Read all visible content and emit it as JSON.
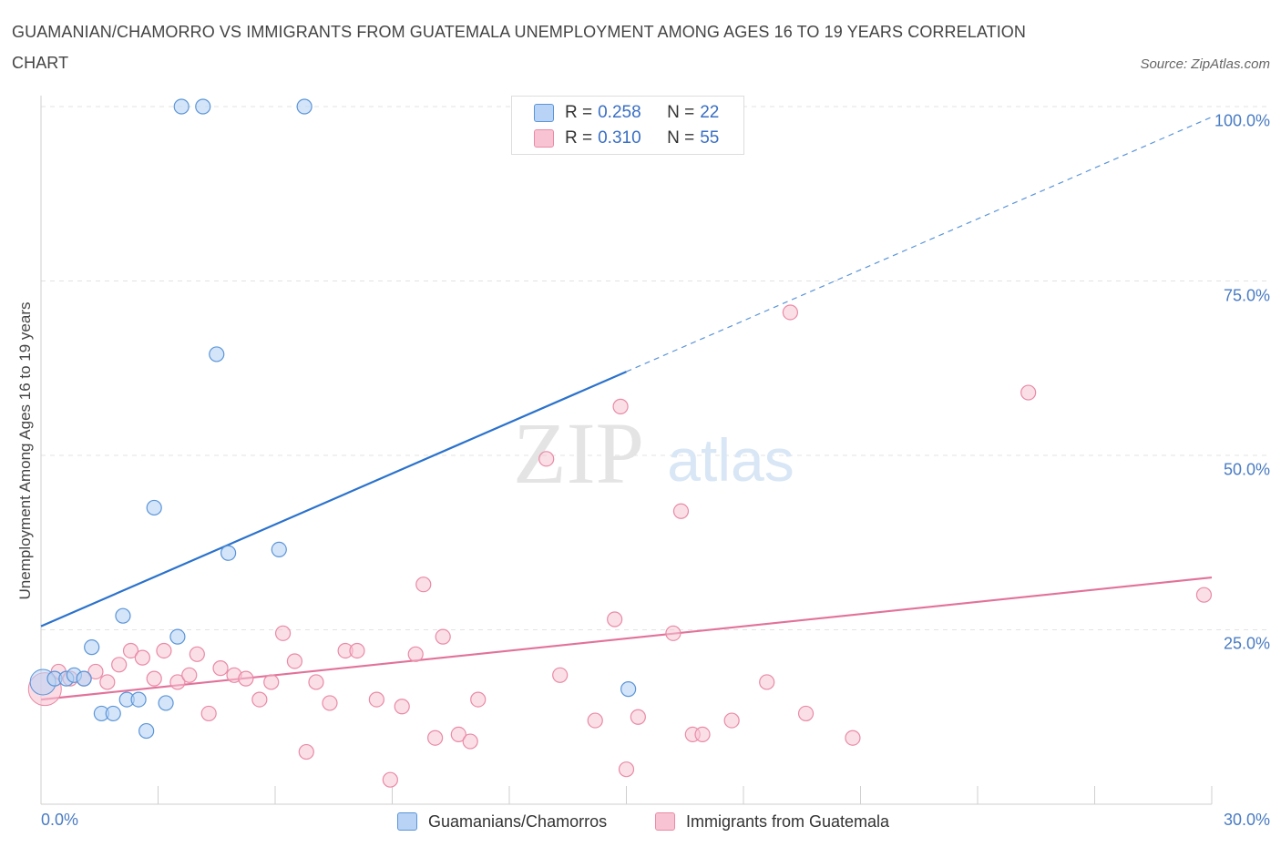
{
  "header": {
    "title": "GUAMANIAN/CHAMORRO VS IMMIGRANTS FROM GUATEMALA UNEMPLOYMENT AMONG AGES 16 TO 19 YEARS CORRELATION CHART",
    "source": "Source: ZipAtlas.com"
  },
  "watermark": {
    "zip": "ZIP",
    "atlas": "atlas"
  },
  "legend": {
    "rows": [
      {
        "r_label": "R = ",
        "r_value": "0.258",
        "n_label": "N = ",
        "n_value": "22"
      },
      {
        "r_label": "R = ",
        "r_value": "0.310",
        "n_label": "N = ",
        "n_value": "55"
      }
    ],
    "bottom": [
      "Guamanians/Chamorros",
      "Immigrants from Guatemala"
    ]
  },
  "colors": {
    "blue_fill": "#b8d3f5",
    "blue_stroke": "#5b95d8",
    "blue_line": "#2b72cc",
    "pink_fill": "#f8c4d3",
    "pink_stroke": "#e98aa6",
    "pink_line": "#e2729a",
    "tick_text": "#4a7cc4"
  },
  "chart_data": {
    "type": "scatter",
    "title": "GUAMANIAN/CHAMORRO VS IMMIGRANTS FROM GUATEMALA UNEMPLOYMENT AMONG AGES 16 TO 19 YEARS CORRELATION CHART",
    "xlabel": "",
    "ylabel": "Unemployment Among Ages 16 to 19 years",
    "xlim": [
      0,
      30
    ],
    "ylim": [
      0,
      100
    ],
    "x_tick_labels": [
      "0.0%",
      "30.0%"
    ],
    "y_tick_labels": [
      "100.0%",
      "75.0%",
      "50.0%",
      "25.0%"
    ],
    "y_ticks": [
      100,
      75,
      50,
      25
    ],
    "grid": true,
    "series": [
      {
        "name": "Guamanians/Chamorros",
        "color": "blue",
        "R": 0.258,
        "N": 22,
        "points": [
          [
            0.05,
            17.5
          ],
          [
            0.35,
            18.0
          ],
          [
            0.65,
            18.0
          ],
          [
            0.85,
            18.5
          ],
          [
            1.1,
            18.0
          ],
          [
            1.3,
            22.5
          ],
          [
            1.55,
            13.0
          ],
          [
            1.85,
            13.0
          ],
          [
            2.1,
            27.0
          ],
          [
            2.2,
            15.0
          ],
          [
            2.5,
            15.0
          ],
          [
            2.7,
            10.5
          ],
          [
            2.9,
            42.5
          ],
          [
            3.2,
            14.5
          ],
          [
            3.5,
            24.0
          ],
          [
            3.6,
            100
          ],
          [
            4.15,
            100
          ],
          [
            4.5,
            64.5
          ],
          [
            4.8,
            36.0
          ],
          [
            6.1,
            36.5
          ],
          [
            6.75,
            100
          ],
          [
            15.05,
            16.5
          ]
        ],
        "trend": {
          "x0": 0,
          "y0": 25.5,
          "x1": 15.0,
          "y1": 62.0,
          "x_dash_end": 30,
          "y_dash_end": 98.5
        }
      },
      {
        "name": "Immigrants from Guatemala",
        "color": "pink",
        "R": 0.31,
        "N": 55,
        "points": [
          [
            0.1,
            16.5
          ],
          [
            0.45,
            19.0
          ],
          [
            0.75,
            18.0
          ],
          [
            1.1,
            18.0
          ],
          [
            1.4,
            19.0
          ],
          [
            1.7,
            17.5
          ],
          [
            2.0,
            20.0
          ],
          [
            2.3,
            22.0
          ],
          [
            2.6,
            21.0
          ],
          [
            2.9,
            18.0
          ],
          [
            3.15,
            22.0
          ],
          [
            3.5,
            17.5
          ],
          [
            3.8,
            18.5
          ],
          [
            4.0,
            21.5
          ],
          [
            4.3,
            13.0
          ],
          [
            4.6,
            19.5
          ],
          [
            4.95,
            18.5
          ],
          [
            5.25,
            18.0
          ],
          [
            5.6,
            15.0
          ],
          [
            5.9,
            17.5
          ],
          [
            6.2,
            24.5
          ],
          [
            6.5,
            20.5
          ],
          [
            6.8,
            7.5
          ],
          [
            7.05,
            17.5
          ],
          [
            7.4,
            14.5
          ],
          [
            7.8,
            22.0
          ],
          [
            8.1,
            22.0
          ],
          [
            8.6,
            15.0
          ],
          [
            8.95,
            3.5
          ],
          [
            9.25,
            14.0
          ],
          [
            9.6,
            21.5
          ],
          [
            9.8,
            31.5
          ],
          [
            10.1,
            9.5
          ],
          [
            10.3,
            24.0
          ],
          [
            10.7,
            10.0
          ],
          [
            11.0,
            9.0
          ],
          [
            11.2,
            15.0
          ],
          [
            12.95,
            49.5
          ],
          [
            13.3,
            18.5
          ],
          [
            14.2,
            12.0
          ],
          [
            14.7,
            26.5
          ],
          [
            14.85,
            57.0
          ],
          [
            15.0,
            5.0
          ],
          [
            15.3,
            12.5
          ],
          [
            16.2,
            24.5
          ],
          [
            16.4,
            42.0
          ],
          [
            16.7,
            10.0
          ],
          [
            16.95,
            10.0
          ],
          [
            17.7,
            12.0
          ],
          [
            18.6,
            17.5
          ],
          [
            19.2,
            70.5
          ],
          [
            19.6,
            13.0
          ],
          [
            20.8,
            9.5
          ],
          [
            25.3,
            59.0
          ],
          [
            29.8,
            30.0
          ]
        ],
        "trend": {
          "x0": 0,
          "y0": 15.0,
          "x1": 30,
          "y1": 32.5
        }
      }
    ]
  }
}
